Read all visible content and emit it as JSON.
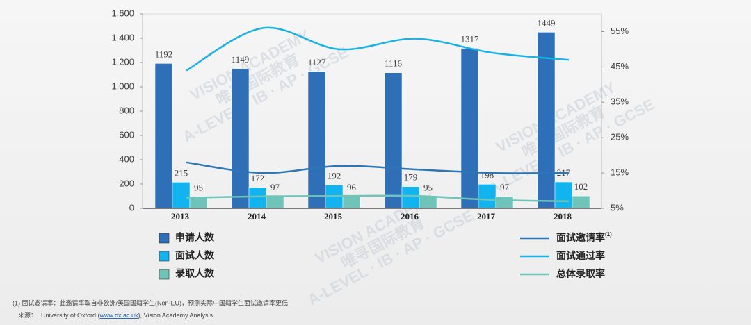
{
  "chart_data": {
    "type": "bar",
    "categories": [
      "2013",
      "2014",
      "2015",
      "2016",
      "2017",
      "2018"
    ],
    "series": [
      {
        "name": "申请人数",
        "type": "bar",
        "color": "#2e6fb7",
        "values": [
          1192,
          1149,
          1127,
          1116,
          1317,
          1449
        ]
      },
      {
        "name": "面试人数",
        "type": "bar",
        "color": "#12b4ef",
        "values": [
          215,
          172,
          192,
          179,
          198,
          217
        ]
      },
      {
        "name": "录取人数",
        "type": "bar",
        "color": "#6ec4b8",
        "values": [
          95,
          97,
          96,
          95,
          97,
          102
        ]
      },
      {
        "name": "面试邀请率",
        "note_marker": "(1)",
        "type": "line",
        "axis": "y2",
        "color": "#2e75b6",
        "values": [
          18,
          15,
          17,
          16,
          15,
          15
        ]
      },
      {
        "name": "面试通过率",
        "type": "line",
        "axis": "y2",
        "color": "#19b2e6",
        "values": [
          44,
          56,
          50,
          53,
          49,
          47
        ]
      },
      {
        "name": "总体录取率",
        "type": "line",
        "axis": "y2",
        "color": "#6ec4b8",
        "values": [
          8,
          8.4,
          8.5,
          8.5,
          7.4,
          7
        ]
      }
    ],
    "ylim": [
      0,
      1600
    ],
    "yticks": [
      0,
      200,
      400,
      600,
      800,
      {
        "value": 1000,
        "label": "1,000"
      },
      {
        "value": 1200,
        "label": "1,200"
      },
      {
        "value": 1400,
        "label": "1,400"
      },
      {
        "value": 1600,
        "label": "1,600"
      }
    ],
    "y2lim": [
      5,
      60
    ],
    "y2ticks": [
      {
        "value": 5,
        "label": "5%"
      },
      {
        "value": 15,
        "label": "15%"
      },
      {
        "value": 25,
        "label": "25%"
      },
      {
        "value": 35,
        "label": "35%"
      },
      {
        "value": 45,
        "label": "45%"
      },
      {
        "value": 55,
        "label": "55%"
      }
    ],
    "footnote": "(1) 面试邀请率：此邀请率取自非欧洲/英国国籍学生(Non-EU)，预测实际中国籍学生面试邀请率更低",
    "source": {
      "prefix": "来源：",
      "text": "University of Oxford (",
      "link": "www.ox.ac.uk",
      "suffix": "), Vision Academy Analysis"
    },
    "watermark": [
      "VISION ACADEMY",
      "唯寻国际教育",
      "A-LEVEL · IB · AP · GCSE"
    ]
  }
}
